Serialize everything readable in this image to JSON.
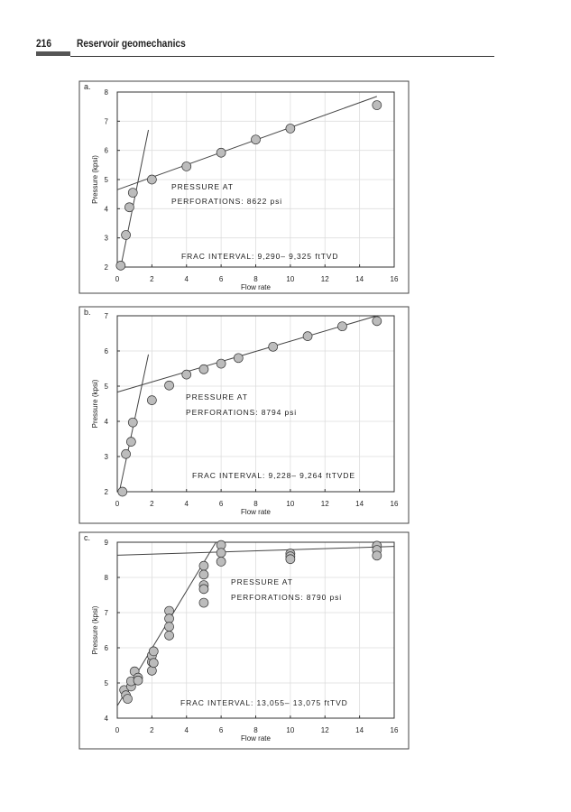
{
  "page_header": {
    "page_number": "216",
    "title": "Reservoir geomechanics"
  },
  "colors": {
    "marker_fill": "#bcbcbc",
    "marker_stroke": "#333333",
    "grid": "#dddddd",
    "line": "#444444"
  },
  "chart_data": [
    {
      "type": "scatter",
      "panel_label": "a.",
      "xlabel": "Flow rate",
      "ylabel": "Pressure (kpsi)",
      "xlim": [
        0,
        16
      ],
      "ylim": [
        2,
        8
      ],
      "xticks": [
        0,
        2,
        4,
        6,
        8,
        10,
        12,
        14,
        16
      ],
      "yticks": [
        2,
        3,
        4,
        5,
        6,
        7,
        8
      ],
      "grid": true,
      "points": [
        [
          0.2,
          2.05
        ],
        [
          0.5,
          3.1
        ],
        [
          0.7,
          4.05
        ],
        [
          0.9,
          4.55
        ],
        [
          2,
          5.0
        ],
        [
          4,
          5.45
        ],
        [
          6,
          5.92
        ],
        [
          8,
          6.37
        ],
        [
          10,
          6.75
        ],
        [
          15,
          7.55
        ]
      ],
      "fit_lines": [
        [
          [
            0.2,
            2.0
          ],
          [
            1.8,
            6.7
          ]
        ],
        [
          [
            0,
            4.65
          ],
          [
            15,
            7.85
          ]
        ]
      ],
      "annotations": [
        "PRESSURE AT",
        "PERFORATIONS: 8622 psi",
        "FRAC INTERVAL: 9,290– 9,325 ftTVD"
      ]
    },
    {
      "type": "scatter",
      "panel_label": "b.",
      "xlabel": "Flow rate",
      "ylabel": "Pressure (kpsi)",
      "xlim": [
        0,
        16
      ],
      "ylim": [
        2,
        7
      ],
      "xticks": [
        0,
        2,
        4,
        6,
        8,
        10,
        12,
        14,
        16
      ],
      "yticks": [
        2,
        3,
        4,
        5,
        6,
        7
      ],
      "grid": true,
      "points": [
        [
          0.3,
          2.0
        ],
        [
          0.5,
          3.07
        ],
        [
          0.8,
          3.42
        ],
        [
          0.9,
          3.97
        ],
        [
          2,
          4.6
        ],
        [
          3,
          5.02
        ],
        [
          4,
          5.33
        ],
        [
          5,
          5.48
        ],
        [
          6,
          5.64
        ],
        [
          7,
          5.8
        ],
        [
          9,
          6.12
        ],
        [
          11,
          6.42
        ],
        [
          13,
          6.7
        ],
        [
          15,
          6.85
        ]
      ],
      "fit_lines": [
        [
          [
            0.1,
            1.95
          ],
          [
            1.8,
            5.9
          ]
        ],
        [
          [
            0,
            4.83
          ],
          [
            15,
            7.0
          ]
        ]
      ],
      "annotations": [
        "PRESSURE AT",
        "PERFORATIONS: 8794 psi",
        "FRAC INTERVAL: 9,228– 9,264 ftTVDE"
      ]
    },
    {
      "type": "scatter",
      "panel_label": "c.",
      "xlabel": "Flow rate",
      "ylabel": "Pressure (kpsi)",
      "xlim": [
        0,
        16
      ],
      "ylim": [
        4,
        9
      ],
      "xticks": [
        0,
        2,
        4,
        6,
        8,
        10,
        12,
        14,
        16
      ],
      "yticks": [
        4,
        5,
        6,
        7,
        8,
        9
      ],
      "grid": true,
      "points": [
        [
          0.4,
          4.8
        ],
        [
          0.5,
          4.65
        ],
        [
          0.6,
          4.55
        ],
        [
          0.8,
          4.9
        ],
        [
          0.8,
          5.05
        ],
        [
          1,
          5.33
        ],
        [
          1.2,
          5.15
        ],
        [
          1.2,
          5.07
        ],
        [
          2,
          5.35
        ],
        [
          2,
          5.6
        ],
        [
          2,
          5.78
        ],
        [
          2.1,
          5.9
        ],
        [
          2.1,
          5.57
        ],
        [
          3,
          7.05
        ],
        [
          3,
          6.83
        ],
        [
          3,
          6.6
        ],
        [
          3,
          6.35
        ],
        [
          5,
          8.33
        ],
        [
          5,
          8.08
        ],
        [
          5,
          7.78
        ],
        [
          5,
          7.67
        ],
        [
          5,
          7.28
        ],
        [
          6,
          8.92
        ],
        [
          6,
          8.7
        ],
        [
          6,
          8.45
        ],
        [
          10,
          8.68
        ],
        [
          10,
          8.6
        ],
        [
          10,
          8.52
        ],
        [
          15,
          8.9
        ],
        [
          15,
          8.78
        ],
        [
          15,
          8.62
        ]
      ],
      "fit_lines": [
        [
          [
            0,
            4.35
          ],
          [
            5.7,
            9.0
          ]
        ],
        [
          [
            0,
            8.63
          ],
          [
            16,
            8.88
          ]
        ]
      ],
      "annotations": [
        "PRESSURE AT",
        "PERFORATIONS: 8790 psi",
        "FRAC INTERVAL: 13,055– 13,075 ftTVD"
      ]
    }
  ]
}
